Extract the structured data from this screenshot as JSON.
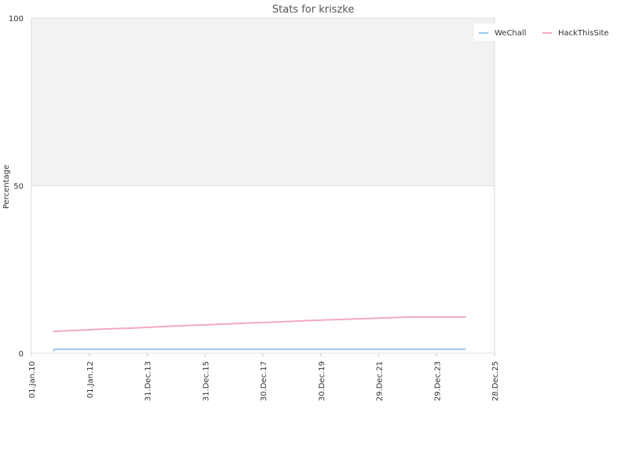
{
  "chart_data": {
    "type": "line",
    "title": "Stats for kriszke",
    "xlabel": "",
    "ylabel": "Percentage",
    "x_ticks": [
      "01.Jan.10",
      "01.Jan.12",
      "31.Dec.13",
      "31.Dec.15",
      "30.Dec.17",
      "30.Dec.19",
      "29.Dec.21",
      "29.Dec.23",
      "28.Dec.25"
    ],
    "xlim": [
      "2010-01-01",
      "2025-12-28"
    ],
    "y_ticks": [
      0,
      50,
      100
    ],
    "ylim": [
      0,
      100
    ],
    "grid": true,
    "legend_position": "top-right",
    "series": [
      {
        "name": "WeChall",
        "color": "#99c9f5",
        "points": [
          {
            "x": "2010-10-01",
            "y": 0.6
          },
          {
            "x": "2010-10-15",
            "y": 1.2
          },
          {
            "x": "2024-12-31",
            "y": 1.2
          }
        ]
      },
      {
        "name": "HackThisSite",
        "color": "#f2a7c9",
        "points": [
          {
            "x": "2010-10-01",
            "y": 6.5
          },
          {
            "x": "2011-06-01",
            "y": 6.8
          },
          {
            "x": "2012-06-01",
            "y": 7.2
          },
          {
            "x": "2013-06-01",
            "y": 7.5
          },
          {
            "x": "2014-06-01",
            "y": 7.9
          },
          {
            "x": "2015-06-01",
            "y": 8.3
          },
          {
            "x": "2016-06-01",
            "y": 8.6
          },
          {
            "x": "2017-06-01",
            "y": 9.0
          },
          {
            "x": "2018-06-01",
            "y": 9.3
          },
          {
            "x": "2019-06-01",
            "y": 9.7
          },
          {
            "x": "2020-06-01",
            "y": 10.0
          },
          {
            "x": "2021-06-01",
            "y": 10.3
          },
          {
            "x": "2022-06-01",
            "y": 10.6
          },
          {
            "x": "2023-01-01",
            "y": 10.8
          },
          {
            "x": "2024-12-31",
            "y": 10.8
          }
        ]
      }
    ]
  }
}
